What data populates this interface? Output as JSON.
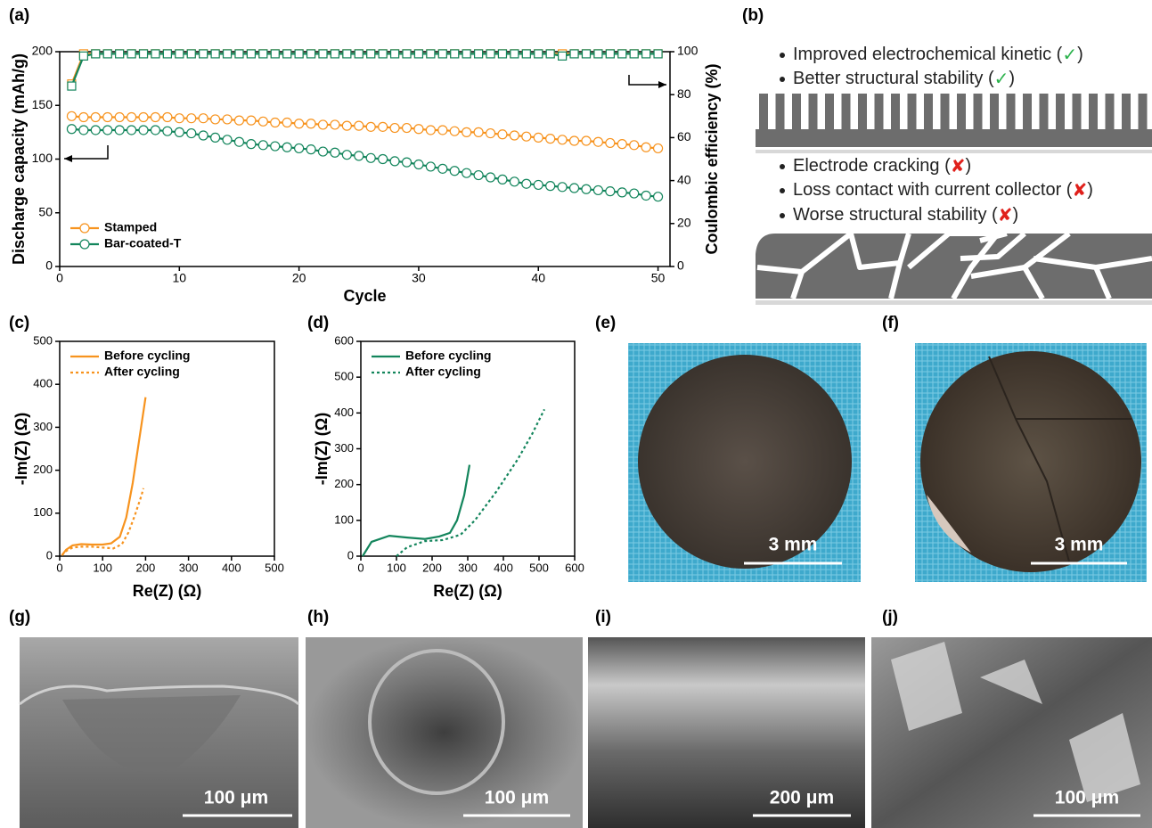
{
  "panel_labels": [
    "(a)",
    "(b)",
    "(c)",
    "(d)",
    "(e)",
    "(f)",
    "(g)",
    "(h)",
    "(i)",
    "(j)"
  ],
  "schematic": {
    "good": [
      {
        "text": "Improved electrochemical kinetic (",
        "mark": "✓",
        "end": ")"
      },
      {
        "text": "Better structural stability (",
        "mark": "✓",
        "end": ")"
      }
    ],
    "bad": [
      {
        "text": "Electrode cracking (",
        "mark": "✘",
        "end": ")"
      },
      {
        "text": "Loss contact with  current collector (",
        "mark": "✘",
        "end": ")"
      },
      {
        "text": "Worse structural stability (",
        "mark": "✘",
        "end": ")"
      }
    ]
  },
  "scale_bars": [
    "3 mm",
    "3 mm",
    "100 μm",
    "100 μm",
    "200 μm",
    "100 μm"
  ],
  "chart_data": [
    {
      "type": "line",
      "xlabel": "Cycle",
      "ylabel": "Discharge capacity (mAh/g)",
      "y2label": "Coulombic efficiency (%)",
      "x": [
        1,
        2,
        3,
        4,
        5,
        6,
        7,
        8,
        9,
        10,
        11,
        12,
        13,
        14,
        15,
        16,
        17,
        18,
        19,
        20,
        21,
        22,
        23,
        24,
        25,
        26,
        27,
        28,
        29,
        30,
        31,
        32,
        33,
        34,
        35,
        36,
        37,
        38,
        39,
        40,
        41,
        42,
        43,
        44,
        45,
        46,
        47,
        48,
        49,
        50
      ],
      "xlim": [
        0,
        51
      ],
      "xticks": [
        0,
        10,
        20,
        30,
        40,
        50
      ],
      "ylim": [
        0,
        200
      ],
      "yticks": [
        0,
        50,
        100,
        150,
        200
      ],
      "y2lim": [
        0,
        100
      ],
      "y2ticks": [
        0,
        20,
        40,
        60,
        80,
        100
      ],
      "legend": "lower left",
      "series": [
        {
          "name": "Stamped",
          "color": "#f7931e",
          "marker": "circle",
          "values": [
            140,
            139,
            139,
            139,
            139,
            139,
            139,
            139,
            139,
            138,
            138,
            138,
            137,
            137,
            136,
            136,
            135,
            134,
            134,
            133,
            133,
            132,
            132,
            131,
            131,
            130,
            130,
            129,
            129,
            128,
            127,
            127,
            126,
            125,
            125,
            124,
            123,
            122,
            121,
            120,
            119,
            118,
            117,
            117,
            116,
            115,
            114,
            113,
            111,
            110
          ]
        },
        {
          "name": "Bar-coated-T",
          "color": "#13855c",
          "marker": "circle",
          "values": [
            128,
            127,
            127,
            127,
            127,
            127,
            127,
            127,
            126,
            125,
            124,
            122,
            120,
            118,
            116,
            114,
            113,
            112,
            111,
            110,
            109,
            107,
            106,
            104,
            103,
            101,
            100,
            98,
            97,
            95,
            93,
            91,
            89,
            87,
            85,
            83,
            81,
            79,
            77,
            76,
            75,
            74,
            73,
            72,
            71,
            70,
            69,
            68,
            66,
            65
          ]
        },
        {
          "color": "#f7931e",
          "marker": "square",
          "axis": "y2",
          "values": [
            85,
            99,
            99,
            99,
            99,
            99,
            99,
            99,
            99,
            99,
            99,
            99,
            99,
            99,
            99,
            99,
            99,
            99,
            99,
            99,
            99,
            99,
            99,
            99,
            99,
            99,
            99,
            99,
            99,
            99,
            99,
            99,
            99,
            99,
            99,
            99,
            99,
            99,
            99,
            99,
            99,
            99,
            99,
            99,
            99,
            99,
            99,
            99,
            99,
            99
          ]
        },
        {
          "color": "#13855c",
          "marker": "square",
          "axis": "y2",
          "values": [
            84,
            98,
            99,
            99,
            99,
            99,
            99,
            99,
            99,
            99,
            99,
            99,
            99,
            99,
            99,
            99,
            99,
            99,
            99,
            99,
            99,
            99,
            99,
            99,
            99,
            99,
            99,
            99,
            99,
            99,
            99,
            99,
            99,
            99,
            99,
            99,
            99,
            99,
            99,
            99,
            99,
            98,
            99,
            99,
            99,
            99,
            99,
            99,
            99,
            99
          ]
        }
      ]
    },
    {
      "type": "line",
      "xlabel": "Re(Z) (Ω)",
      "ylabel": "-Im(Z) (Ω)",
      "xlim": [
        0,
        500
      ],
      "xticks": [
        0,
        100,
        200,
        300,
        400,
        500
      ],
      "ylim": [
        0,
        500
      ],
      "yticks": [
        0,
        100,
        200,
        300,
        400,
        500
      ],
      "legend": "upper left",
      "series": [
        {
          "name": "Before cycling",
          "color": "#f7931e",
          "dash": false,
          "x": [
            5,
            15,
            30,
            50,
            75,
            100,
            120,
            140,
            155,
            170,
            185,
            200
          ],
          "values": [
            2,
            15,
            25,
            28,
            27,
            27,
            30,
            45,
            90,
            170,
            270,
            370
          ]
        },
        {
          "name": "After cycling",
          "color": "#f7931e",
          "dash": true,
          "x": [
            5,
            15,
            30,
            50,
            75,
            100,
            125,
            145,
            160,
            175,
            190,
            195
          ],
          "values": [
            2,
            12,
            20,
            22,
            22,
            20,
            18,
            28,
            55,
            95,
            140,
            158
          ]
        }
      ]
    },
    {
      "type": "line",
      "xlabel": "Re(Z) (Ω)",
      "ylabel": "-Im(Z) (Ω)",
      "xlim": [
        0,
        600
      ],
      "xticks": [
        0,
        100,
        200,
        300,
        400,
        500,
        600
      ],
      "ylim": [
        0,
        600
      ],
      "yticks": [
        0,
        100,
        200,
        300,
        400,
        500,
        600
      ],
      "legend": "upper left",
      "series": [
        {
          "name": "Before cycling",
          "color": "#13855c",
          "dash": false,
          "x": [
            5,
            30,
            80,
            130,
            180,
            220,
            250,
            270,
            290,
            305
          ],
          "values": [
            0,
            40,
            57,
            52,
            48,
            55,
            65,
            100,
            170,
            255
          ]
        },
        {
          "name": "After cycling",
          "color": "#13855c",
          "dash": true,
          "x": [
            100,
            130,
            180,
            230,
            280,
            320,
            380,
            440,
            480,
            515
          ],
          "values": [
            0,
            25,
            42,
            45,
            60,
            100,
            180,
            270,
            340,
            410
          ]
        }
      ]
    }
  ]
}
